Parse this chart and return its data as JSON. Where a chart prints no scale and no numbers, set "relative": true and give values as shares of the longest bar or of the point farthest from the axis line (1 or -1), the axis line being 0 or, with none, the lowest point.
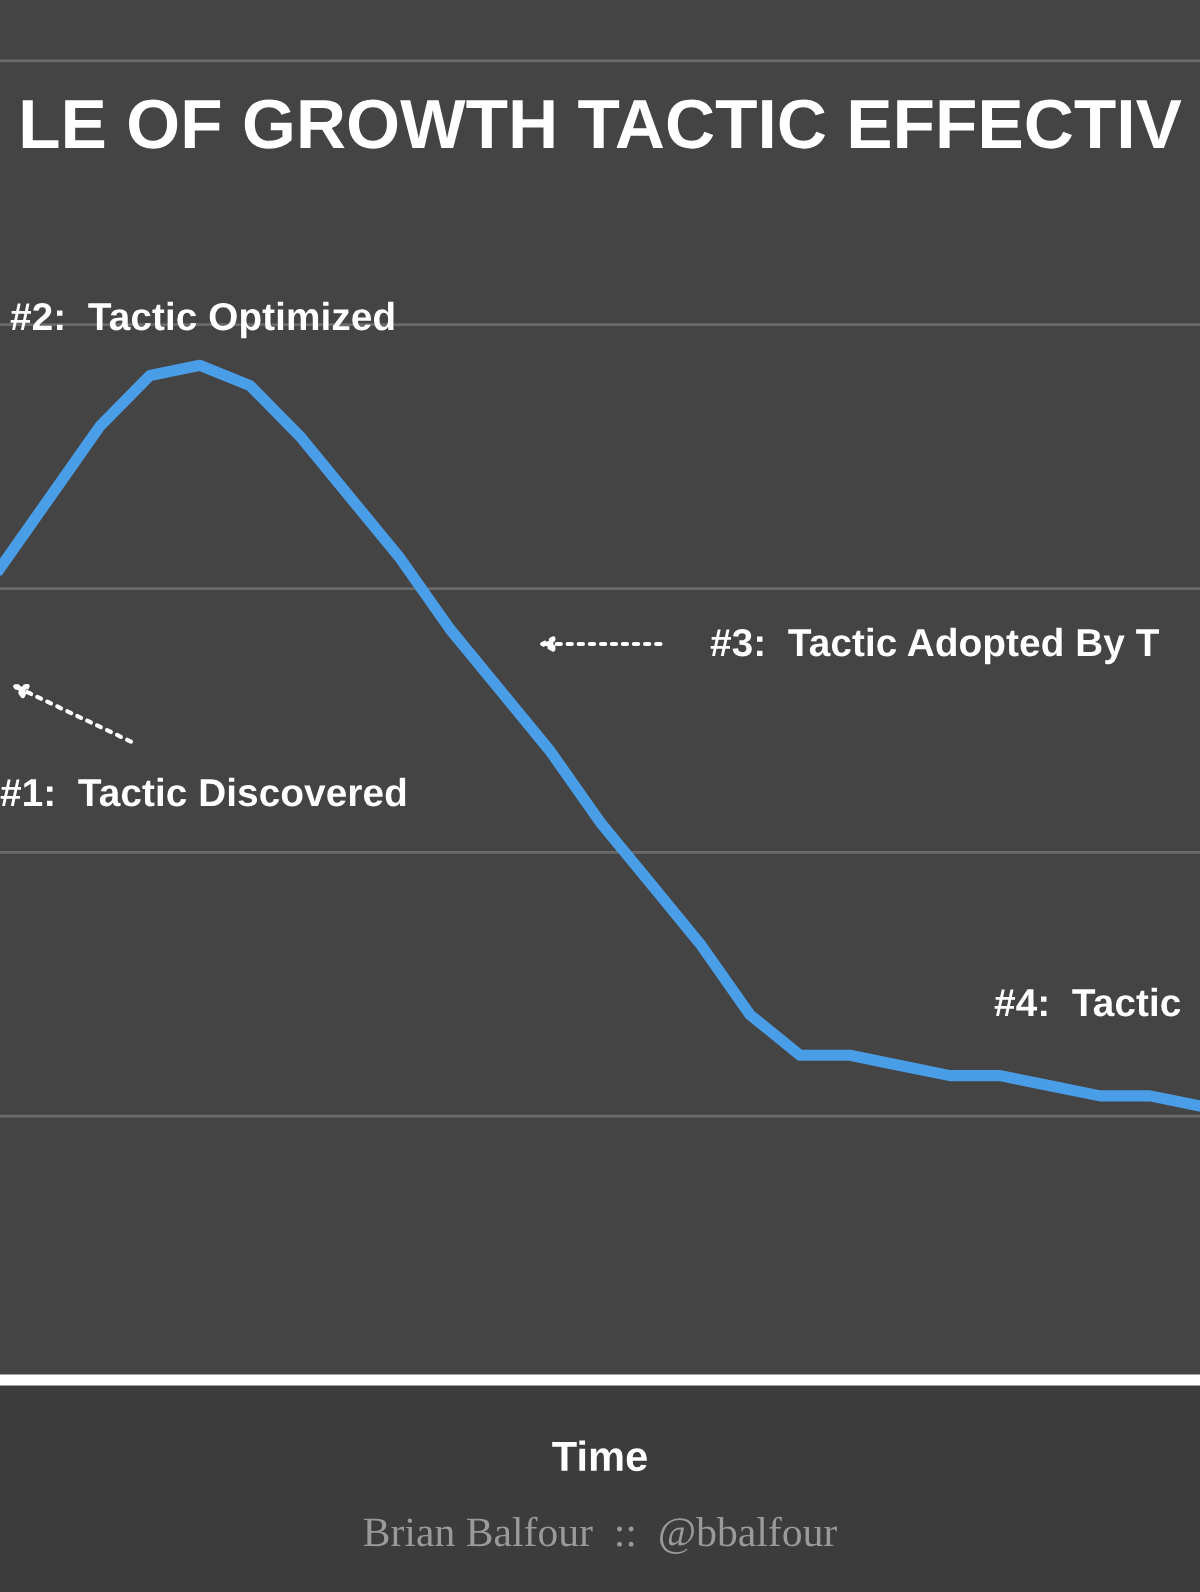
{
  "chart_data": {
    "type": "line",
    "title": "LE OF GROWTH TACTIC EFFECTIV",
    "xlabel": "Time",
    "categories": [
      null,
      null,
      null,
      null,
      null,
      null,
      null,
      null,
      null,
      null,
      null,
      null,
      null,
      null,
      null,
      null,
      null,
      null,
      null,
      null,
      null,
      null,
      null,
      null,
      null
    ],
    "series": [
      {
        "color": "#4a9ee8",
        "values": [
          0.8,
          0.87,
          0.94,
          0.99,
          1.0,
          0.98,
          0.93,
          0.87,
          0.81,
          0.74,
          0.68,
          0.62,
          0.55,
          0.49,
          0.43,
          0.36,
          0.32,
          0.32,
          0.31,
          0.3,
          0.3,
          0.29,
          0.28,
          0.28,
          0.27
        ]
      }
    ],
    "relative": true,
    "grid": "y",
    "marker": "none",
    "line_style": "solid",
    "annotations": [
      "#2:  Tactic Optimized",
      "#1:  Tactic Discovered",
      "#3:  Tactic Adopted By T",
      "#4:  Tactic",
      "Brian Balfour  ::  @bbalfour"
    ]
  }
}
